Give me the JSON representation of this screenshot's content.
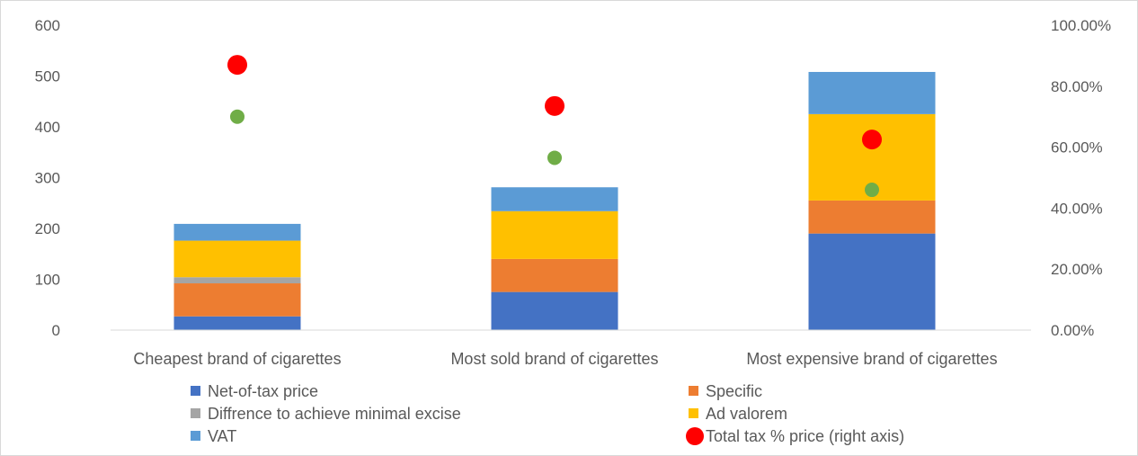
{
  "chart_data": {
    "type": "bar",
    "stacked": true,
    "categories": [
      "Cheapest brand of cigarettes",
      "Most sold brand of cigarettes",
      "Most expensive brand of cigarettes"
    ],
    "series": [
      {
        "name": "Net-of-tax price",
        "color": "#4472C4",
        "values": [
          27,
          75,
          190
        ]
      },
      {
        "name": "Specific",
        "color": "#ED7D31",
        "values": [
          65,
          65,
          65
        ]
      },
      {
        "name": "Diffrence to achieve minimal excise",
        "color": "#A5A5A5",
        "values": [
          12,
          0,
          0
        ]
      },
      {
        "name": "Ad valorem",
        "color": "#FFC000",
        "values": [
          72,
          94,
          170
        ]
      },
      {
        "name": "VAT",
        "color": "#5B9BD5",
        "values": [
          33,
          47,
          83
        ]
      }
    ],
    "points": [
      {
        "name": "Total tax  % price (right axis)",
        "color": "#FF0000",
        "axis": "right",
        "values": [
          0.87,
          0.735,
          0.625
        ]
      },
      {
        "name": "",
        "color": "#70AD47",
        "axis": "right",
        "values": [
          0.7,
          0.565,
          0.46
        ]
      }
    ],
    "ylim": [
      0,
      600
    ],
    "yticks": [
      "0",
      "100",
      "200",
      "300",
      "400",
      "500",
      "600"
    ],
    "y2lim": [
      0,
      1
    ],
    "y2ticks": [
      "0.00%",
      "20.00%",
      "40.00%",
      "60.00%",
      "80.00%",
      "100.00%"
    ],
    "legend_position": "bottom",
    "grid": false
  }
}
